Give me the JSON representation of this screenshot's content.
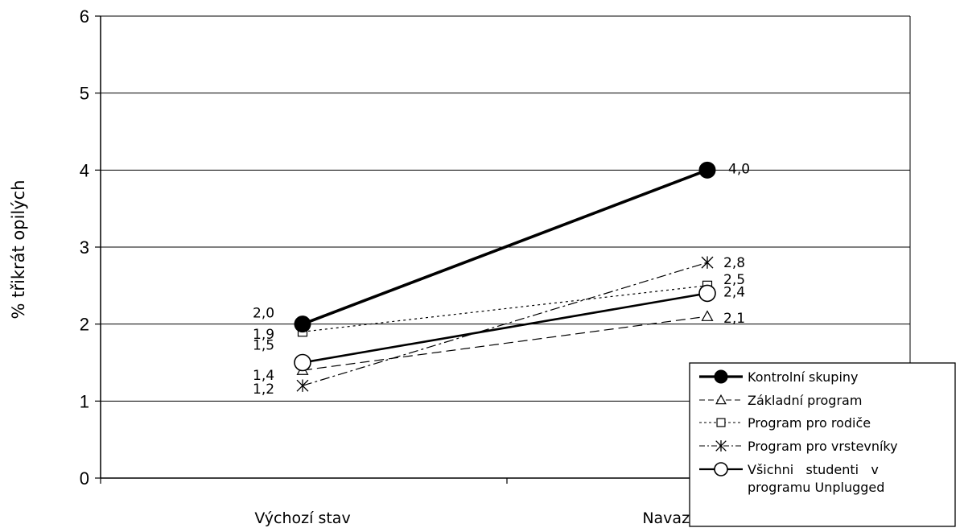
{
  "chart_data": {
    "type": "line",
    "categories": [
      "Výchozí stav",
      "Navazující stav"
    ],
    "ylabel": "% třikrát  opilých",
    "ylim": [
      0,
      6
    ],
    "yticks": [
      0,
      1,
      2,
      3,
      4,
      5,
      6
    ],
    "grid": true,
    "legend_position": "bottom-right",
    "series": [
      {
        "name": "Kontrolní skupiny",
        "values": [
          2.0,
          4.0
        ],
        "labels": [
          "2,0",
          "4,0"
        ],
        "marker": "filled-circle",
        "dash": "solid",
        "weight": "heavy"
      },
      {
        "name": "Základní program",
        "values": [
          1.4,
          2.1
        ],
        "labels": [
          "1,4",
          "2,1"
        ],
        "marker": "triangle",
        "dash": "dashed",
        "weight": "thin"
      },
      {
        "name": "Program pro rodiče",
        "values": [
          1.9,
          2.5
        ],
        "labels": [
          "1,9",
          "2,5"
        ],
        "marker": "square",
        "dash": "dotted",
        "weight": "thin"
      },
      {
        "name": "Program pro vrstevníky",
        "values": [
          1.2,
          2.8
        ],
        "labels": [
          "1,2",
          "2,8"
        ],
        "marker": "asterisk",
        "dash": "dashdot",
        "weight": "thin"
      },
      {
        "name": "Všichni  studenti  v programu Unplugged",
        "legend_lines": [
          "Všichni   studenti   v",
          "programu Unplugged"
        ],
        "values": [
          1.5,
          2.4
        ],
        "labels": [
          "1,5",
          "2,4"
        ],
        "marker": "open-circle",
        "dash": "solid",
        "weight": "medium"
      }
    ]
  }
}
